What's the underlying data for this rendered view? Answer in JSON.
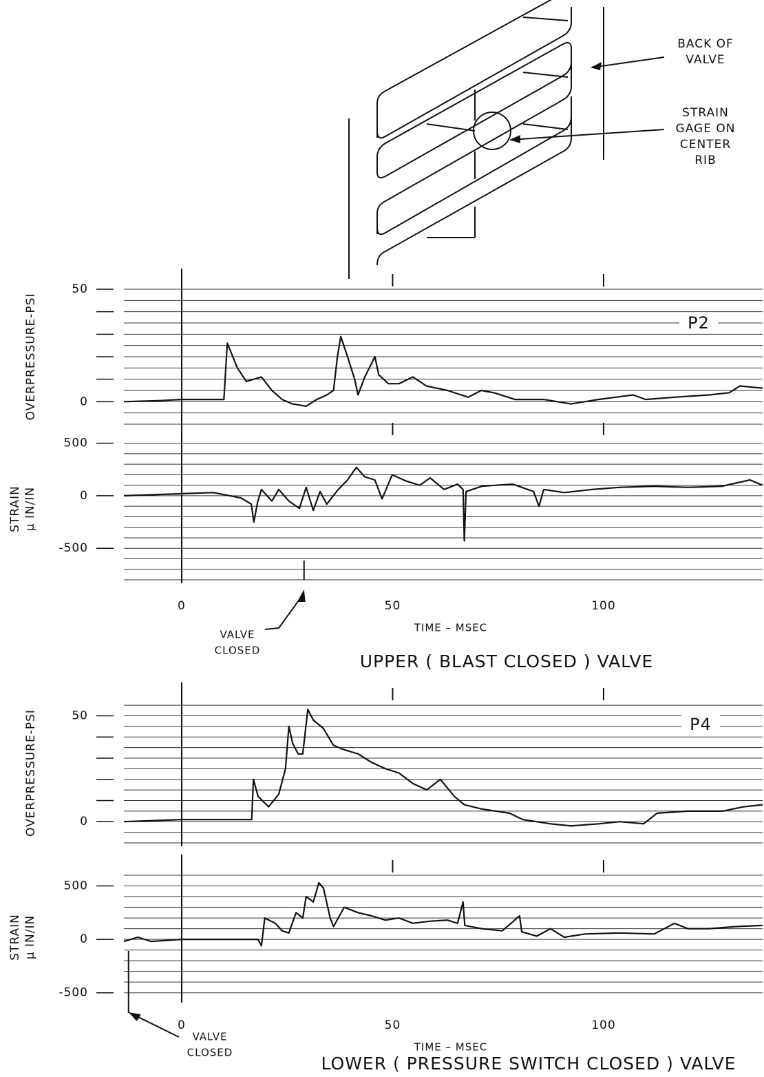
{
  "diagram": {
    "labels": [
      {
        "lines": [
          "BACK OF",
          "VALVE"
        ]
      },
      {
        "lines": [
          "STRAIN",
          "GAGE ON",
          "CENTER",
          "RIB"
        ]
      }
    ]
  },
  "chart_data": [
    {
      "type": "line",
      "label": "P2",
      "ylabel": [
        "OVERPRESSURE-PSI"
      ],
      "color": "#111",
      "xlim": [
        -13.7,
        137.7
      ],
      "xticks": [
        0,
        50,
        100
      ],
      "ylim": [
        -10,
        50
      ],
      "yticks": [
        0,
        50
      ],
      "minor_yticks": [
        10,
        20,
        30,
        40
      ],
      "grid_step": 5,
      "x": [
        -13.7,
        -5,
        0,
        10,
        10.8,
        13.2,
        15.3,
        18.9,
        21.4,
        23.8,
        26.3,
        29.5,
        32,
        34.4,
        36,
        36.9,
        37.7,
        39.3,
        41,
        41.8,
        43.4,
        45.8,
        46.7,
        49,
        51.5,
        54.8,
        58,
        63,
        67.9,
        71,
        74,
        79,
        85.8,
        92.3,
        98.8,
        107,
        110,
        116.8,
        125,
        129.8,
        132.3,
        137.7
      ],
      "values": [
        0,
        0.5,
        1,
        1,
        26,
        15,
        9,
        11,
        5,
        1,
        -1,
        -2,
        1,
        3,
        5,
        20,
        29,
        20,
        10,
        3,
        11,
        20,
        12,
        8,
        8,
        11,
        7,
        5,
        2,
        5,
        4,
        1,
        1,
        -1,
        1,
        3,
        1,
        2,
        3,
        4,
        7,
        6
      ]
    },
    {
      "type": "line",
      "ylabel": [
        "STRAIN",
        "μ IN/IN"
      ],
      "color": "#111",
      "xlim": [
        -13.7,
        137.7
      ],
      "xticks": [
        0,
        50,
        100
      ],
      "xlabel": "TIME – MSEC",
      "ylim": [
        -800,
        550
      ],
      "yticks": [
        -500,
        0,
        500
      ],
      "grid_step": 100,
      "title": "UPPER ( BLAST CLOSED ) VALVE",
      "annotation": {
        "lines": [
          "VALVE",
          "CLOSED"
        ],
        "x": 29
      },
      "x": [
        -13.7,
        0,
        7.5,
        14,
        16.5,
        17.1,
        18,
        18.9,
        21.4,
        23,
        25.4,
        27.9,
        29.5,
        31.2,
        32.8,
        34.4,
        36.9,
        39.3,
        41.4,
        43.4,
        45.8,
        47.5,
        49.9,
        53.2,
        56.4,
        58.9,
        62.2,
        65.4,
        66.7,
        67,
        67.4,
        71.1,
        74.4,
        78.5,
        83.4,
        84.7,
        85.8,
        90.7,
        97.2,
        103.8,
        112,
        120,
        128,
        134.7,
        137.7
      ],
      "values": [
        0,
        20,
        30,
        -20,
        -80,
        -250,
        -60,
        60,
        -50,
        60,
        -50,
        -120,
        80,
        -140,
        40,
        -80,
        50,
        150,
        270,
        180,
        150,
        -30,
        200,
        140,
        100,
        170,
        60,
        110,
        60,
        -430,
        40,
        90,
        100,
        110,
        40,
        -100,
        60,
        30,
        60,
        80,
        90,
        80,
        90,
        150,
        100
      ]
    },
    {
      "type": "line",
      "label": "P4",
      "ylabel": [
        "OVERPRESSURE-PSI"
      ],
      "color": "#111",
      "xlim": [
        -13.7,
        137.7
      ],
      "xticks": [
        0,
        50,
        100
      ],
      "ylim": [
        -10,
        56
      ],
      "yticks": [
        0,
        50
      ],
      "minor_yticks": [
        10,
        20,
        30,
        40
      ],
      "grid_step": 5,
      "x": [
        -13.7,
        0,
        14,
        16.6,
        17,
        18.1,
        20.6,
        23,
        24.6,
        25.4,
        26.3,
        27.6,
        28.7,
        29.9,
        31.2,
        33.6,
        36,
        38.5,
        41.8,
        45,
        48.3,
        51.5,
        54.8,
        58.1,
        61.3,
        64.6,
        67,
        71.1,
        77.7,
        80.9,
        87.4,
        92.3,
        98.9,
        103.8,
        109.5,
        112.7,
        120,
        128.2,
        133.1,
        137.7
      ],
      "values": [
        0,
        1,
        1,
        1,
        20,
        12,
        7,
        13,
        25,
        45,
        37,
        32,
        32,
        53,
        48,
        44,
        36,
        34,
        32,
        28,
        25,
        23,
        18,
        15,
        20,
        12,
        8,
        6,
        4,
        1,
        -1,
        -2,
        -1,
        0,
        -1,
        4,
        5,
        5,
        7,
        8
      ]
    },
    {
      "type": "line",
      "ylabel": [
        "STRAIN",
        "μ IN/IN"
      ],
      "color": "#111",
      "xlim": [
        -13.7,
        137.7
      ],
      "xticks": [
        0,
        50,
        100
      ],
      "xlabel": "TIME – MSEC",
      "ylim": [
        -560,
        600
      ],
      "yticks": [
        -500,
        0,
        500
      ],
      "grid_step": 100,
      "title": "LOWER ( PRESSURE SWITCH CLOSED ) VALVE",
      "annotation": {
        "lines": [
          "VALVE",
          "CLOSED"
        ],
        "x": -12.6
      },
      "x": [
        -13.7,
        -10.4,
        -7.2,
        0,
        9.1,
        18.1,
        18.9,
        19.7,
        22.2,
        23.8,
        25.4,
        27.1,
        28.7,
        29.5,
        31.2,
        32.5,
        33.6,
        35.2,
        36,
        38.5,
        41.8,
        45,
        48.3,
        51.5,
        54.8,
        58.9,
        63,
        65.4,
        66.7,
        67.1,
        71.1,
        76,
        80.1,
        80.6,
        84.2,
        87.4,
        90.7,
        95.6,
        103.8,
        112,
        116.8,
        120,
        125,
        131.5,
        137.7
      ],
      "values": [
        -20,
        20,
        -20,
        0,
        0,
        0,
        -60,
        200,
        150,
        80,
        60,
        250,
        200,
        400,
        350,
        530,
        480,
        200,
        120,
        300,
        250,
        220,
        180,
        200,
        150,
        170,
        180,
        150,
        350,
        130,
        100,
        80,
        220,
        70,
        30,
        100,
        20,
        50,
        60,
        50,
        150,
        100,
        100,
        120,
        130
      ]
    }
  ]
}
